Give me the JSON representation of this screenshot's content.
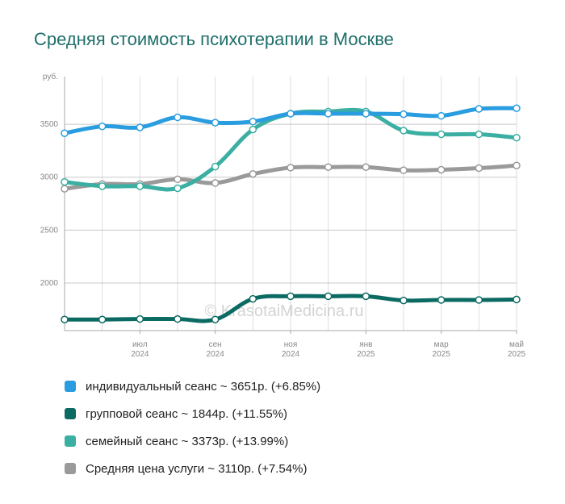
{
  "chart_data": {
    "type": "line",
    "title": "Средняя стоимость психотерапии в Москве",
    "yunit": "руб.",
    "ylim": [
      1550,
      3950
    ],
    "yticks": [
      2000,
      2500,
      3000,
      3500
    ],
    "xmonths": [
      "2024-05",
      "2024-06",
      "2024-07",
      "2024-08",
      "2024-09",
      "2024-10",
      "2024-11",
      "2024-12",
      "2025-01",
      "2025-02",
      "2025-03",
      "2025-04",
      "2025-05"
    ],
    "xtick_labels": [
      {
        "month": "2024-07",
        "m": "июл",
        "y": "2024"
      },
      {
        "month": "2024-09",
        "m": "сен",
        "y": "2024"
      },
      {
        "month": "2024-11",
        "m": "ноя",
        "y": "2024"
      },
      {
        "month": "2025-01",
        "m": "янв",
        "y": "2025"
      },
      {
        "month": "2025-03",
        "m": "мар",
        "y": "2025"
      },
      {
        "month": "2025-05",
        "m": "май",
        "y": "2025"
      }
    ],
    "grid": true,
    "watermark": "© KrasotaiMedicina.ru",
    "series": [
      {
        "name": "индивидуальный сеанс",
        "color": "#2a9de0",
        "values": [
          3415,
          3480,
          3470,
          3565,
          3515,
          3525,
          3600,
          3600,
          3600,
          3595,
          3580,
          3645,
          3651
        ]
      },
      {
        "name": "групповой сеанс",
        "color": "#0b6b63",
        "values": [
          1655,
          1655,
          1660,
          1660,
          1655,
          1850,
          1875,
          1875,
          1875,
          1835,
          1840,
          1840,
          1844
        ]
      },
      {
        "name": "семейный сеанс",
        "color": "#3aafa2",
        "values": [
          2955,
          2915,
          2915,
          2895,
          3100,
          3450,
          3600,
          3620,
          3620,
          3440,
          3405,
          3405,
          3373
        ]
      },
      {
        "name": "Средняя цена услуги",
        "color": "#9a9a9a",
        "values": [
          2890,
          2935,
          2935,
          2980,
          2945,
          3030,
          3090,
          3095,
          3095,
          3065,
          3070,
          3085,
          3110
        ]
      }
    ]
  },
  "legend": [
    {
      "label": "индивидуальный сеанс ~ 3651р. (+6.85%)",
      "color": "#2a9de0"
    },
    {
      "label": "групповой сеанс ~ 1844р. (+11.55%)",
      "color": "#0b6b63"
    },
    {
      "label": "семейный сеанс ~ 3373р. (+13.99%)",
      "color": "#3aafa2"
    },
    {
      "label": "Средняя цена услуги ~ 3110р. (+7.54%)",
      "color": "#9a9a9a"
    }
  ]
}
